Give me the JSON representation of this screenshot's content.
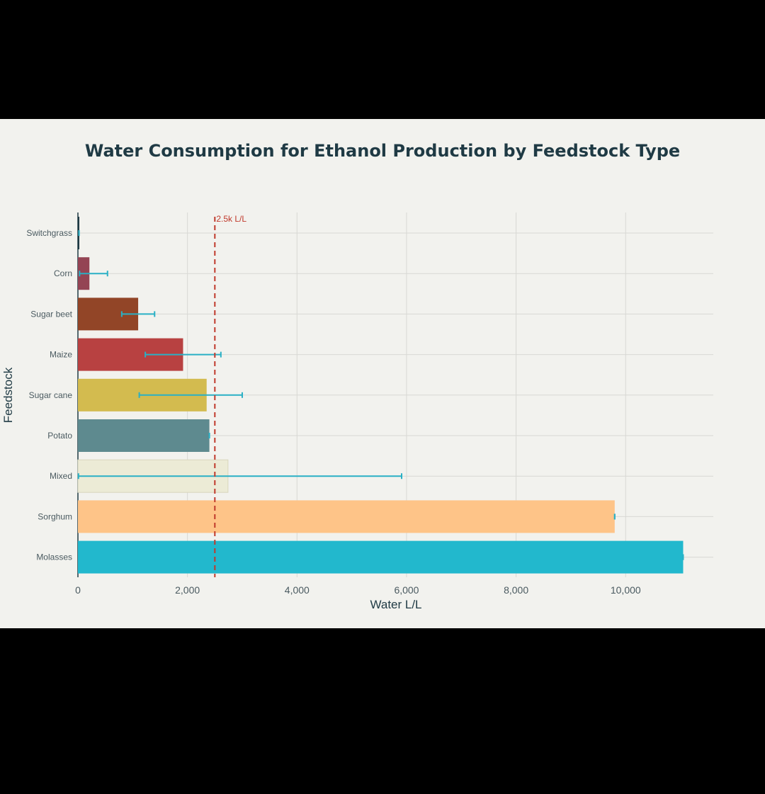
{
  "chart_data": {
    "type": "bar",
    "orientation": "horizontal",
    "title": "Water Consumption for Ethanol Production by Feedstock Type",
    "xlabel": "Water L/L",
    "ylabel": "Feedstock",
    "xlim": [
      0,
      11600
    ],
    "xticks": [
      0,
      2000,
      4000,
      6000,
      8000,
      10000
    ],
    "xtick_labels": [
      "0",
      "2,000",
      "4,000",
      "6,000",
      "8,000",
      "10,000"
    ],
    "grid": true,
    "reference_line": {
      "value": 2500,
      "label": "2.5k L/L",
      "color": "#c0392b"
    },
    "error_bar_color": "#2ab0c5",
    "categories": [
      "Switchgrass",
      "Corn",
      "Sugar beet",
      "Maize",
      "Sugar cane",
      "Potato",
      "Mixed",
      "Sorghum",
      "Molasses"
    ],
    "values": [
      20,
      210,
      1100,
      1920,
      2350,
      2400,
      2740,
      9800,
      11050
    ],
    "error_low": [
      20,
      30,
      800,
      1230,
      1120,
      2400,
      10,
      9800,
      11050
    ],
    "error_high": [
      20,
      540,
      1400,
      2610,
      3000,
      2400,
      5910,
      9800,
      11050
    ],
    "colors": [
      "#1f3a44",
      "#944454",
      "#924527",
      "#b84141",
      "#d3bb4f",
      "#5e8a8f",
      "#ecebd6",
      "#fec488",
      "#22b8cd"
    ]
  }
}
